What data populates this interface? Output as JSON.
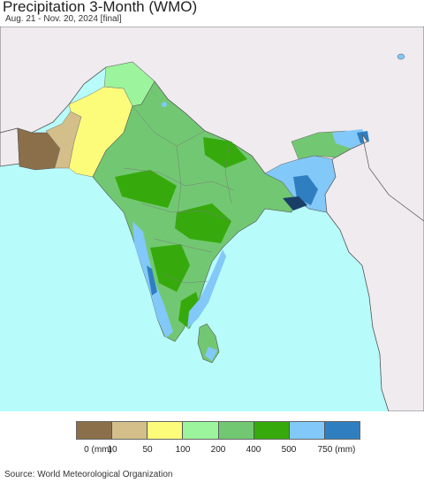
{
  "header": {
    "title": "Precipitation 3-Month (WMO)",
    "subtitle": "Aug. 21 - Nov. 20, 2024 [final]"
  },
  "map": {
    "colors": {
      "ocean": "#b8fbfb",
      "land_outside": "#efebef",
      "border": "#555555",
      "internal_border": "#7a7a7a"
    },
    "legend": {
      "labels": [
        "0 (mm)",
        "10",
        "50",
        "100",
        "200",
        "400",
        "500",
        "750 (mm)"
      ],
      "colors": [
        "#8b6f4a",
        "#d4bf8a",
        "#fdfb7a",
        "#9cf49c",
        "#72c872",
        "#36aa0c",
        "#82c8f8",
        "#2f7fc0"
      ]
    }
  },
  "footer": {
    "source": "Source: World Meteorological Organization"
  }
}
